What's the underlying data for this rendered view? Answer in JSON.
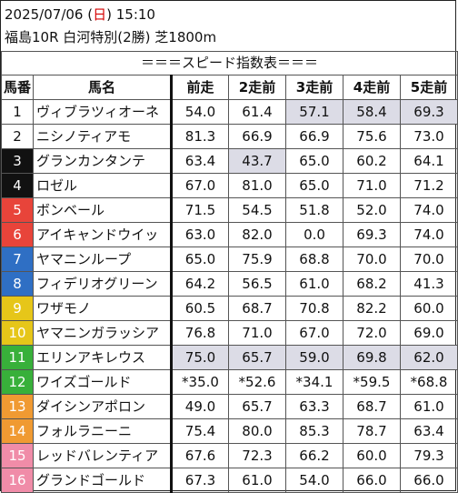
{
  "header": {
    "date": "2025/07/06",
    "day_open": " (",
    "day": "日",
    "day_close": ")",
    "time": " 15:10",
    "race": "福島10R 白河特別(2勝) 芝1800m"
  },
  "table": {
    "banner": "＝＝＝スピード指数表＝＝＝",
    "columns": [
      "馬番",
      "馬名",
      "前走",
      "2走前",
      "3走前",
      "4走前",
      "5走前"
    ],
    "rows": [
      {
        "no": "1",
        "color": "w",
        "name": "ヴィブラツィオーネ",
        "v": [
          "54.0",
          "61.4",
          "57.1",
          "58.4",
          "69.3"
        ],
        "shade": [
          false,
          false,
          true,
          true,
          true
        ]
      },
      {
        "no": "2",
        "color": "w",
        "name": "ニシノティアモ",
        "v": [
          "81.3",
          "66.9",
          "66.9",
          "75.6",
          "73.0"
        ],
        "shade": [
          false,
          false,
          false,
          false,
          false
        ]
      },
      {
        "no": "3",
        "color": "k",
        "name": "グランカンタンテ",
        "v": [
          "63.4",
          "43.7",
          "65.0",
          "60.2",
          "64.1"
        ],
        "shade": [
          false,
          true,
          false,
          false,
          false
        ]
      },
      {
        "no": "4",
        "color": "k",
        "name": "ロゼル",
        "v": [
          "67.0",
          "81.0",
          "65.0",
          "71.0",
          "71.2"
        ],
        "shade": [
          false,
          false,
          false,
          false,
          false
        ]
      },
      {
        "no": "5",
        "color": "r",
        "name": "ボンベール",
        "v": [
          "71.5",
          "54.5",
          "51.8",
          "52.0",
          "74.0"
        ],
        "shade": [
          false,
          false,
          false,
          false,
          false
        ]
      },
      {
        "no": "6",
        "color": "r",
        "name": "アイキャンドウイッ",
        "v": [
          "63.0",
          "82.0",
          "0.0",
          "69.3",
          "74.0"
        ],
        "shade": [
          false,
          false,
          false,
          false,
          false
        ]
      },
      {
        "no": "7",
        "color": "b",
        "name": "ヤマニンループ",
        "v": [
          "65.0",
          "75.9",
          "68.8",
          "70.0",
          "70.0"
        ],
        "shade": [
          false,
          false,
          false,
          false,
          false
        ]
      },
      {
        "no": "8",
        "color": "b",
        "name": "フィデリオグリーン",
        "v": [
          "64.2",
          "56.5",
          "61.0",
          "68.2",
          "41.3"
        ],
        "shade": [
          false,
          false,
          false,
          false,
          false
        ]
      },
      {
        "no": "9",
        "color": "y",
        "name": "ワザモノ",
        "v": [
          "60.5",
          "68.7",
          "70.8",
          "82.2",
          "60.0"
        ],
        "shade": [
          false,
          false,
          false,
          false,
          false
        ]
      },
      {
        "no": "10",
        "color": "y",
        "name": "ヤマニンガラッシア",
        "v": [
          "76.8",
          "71.0",
          "67.0",
          "72.0",
          "69.0"
        ],
        "shade": [
          false,
          false,
          false,
          false,
          false
        ]
      },
      {
        "no": "11",
        "color": "g",
        "name": "エリンアキレウス",
        "v": [
          "75.0",
          "65.7",
          "59.0",
          "69.8",
          "62.0"
        ],
        "shade": [
          true,
          true,
          true,
          true,
          true
        ]
      },
      {
        "no": "12",
        "color": "g",
        "name": "ワイズゴールド",
        "v": [
          "*35.0",
          "*52.6",
          "*34.1",
          "*59.5",
          "*68.8"
        ],
        "shade": [
          false,
          false,
          false,
          false,
          false
        ]
      },
      {
        "no": "13",
        "color": "o",
        "name": "ダイシンアポロン",
        "v": [
          "49.0",
          "65.7",
          "63.3",
          "68.7",
          "61.0"
        ],
        "shade": [
          false,
          false,
          false,
          false,
          false
        ]
      },
      {
        "no": "14",
        "color": "o",
        "name": "フォルラニーニ",
        "v": [
          "75.4",
          "80.0",
          "85.3",
          "78.7",
          "63.4"
        ],
        "shade": [
          false,
          false,
          false,
          false,
          false
        ]
      },
      {
        "no": "15",
        "color": "p",
        "name": "レッドバレンティア",
        "v": [
          "67.6",
          "72.3",
          "66.2",
          "60.0",
          "79.3"
        ],
        "shade": [
          false,
          false,
          false,
          false,
          false
        ]
      },
      {
        "no": "16",
        "color": "p",
        "name": "グランドゴールド",
        "v": [
          "67.3",
          "61.0",
          "54.0",
          "66.0",
          "66.0"
        ],
        "shade": [
          false,
          false,
          false,
          false,
          false
        ]
      }
    ]
  }
}
